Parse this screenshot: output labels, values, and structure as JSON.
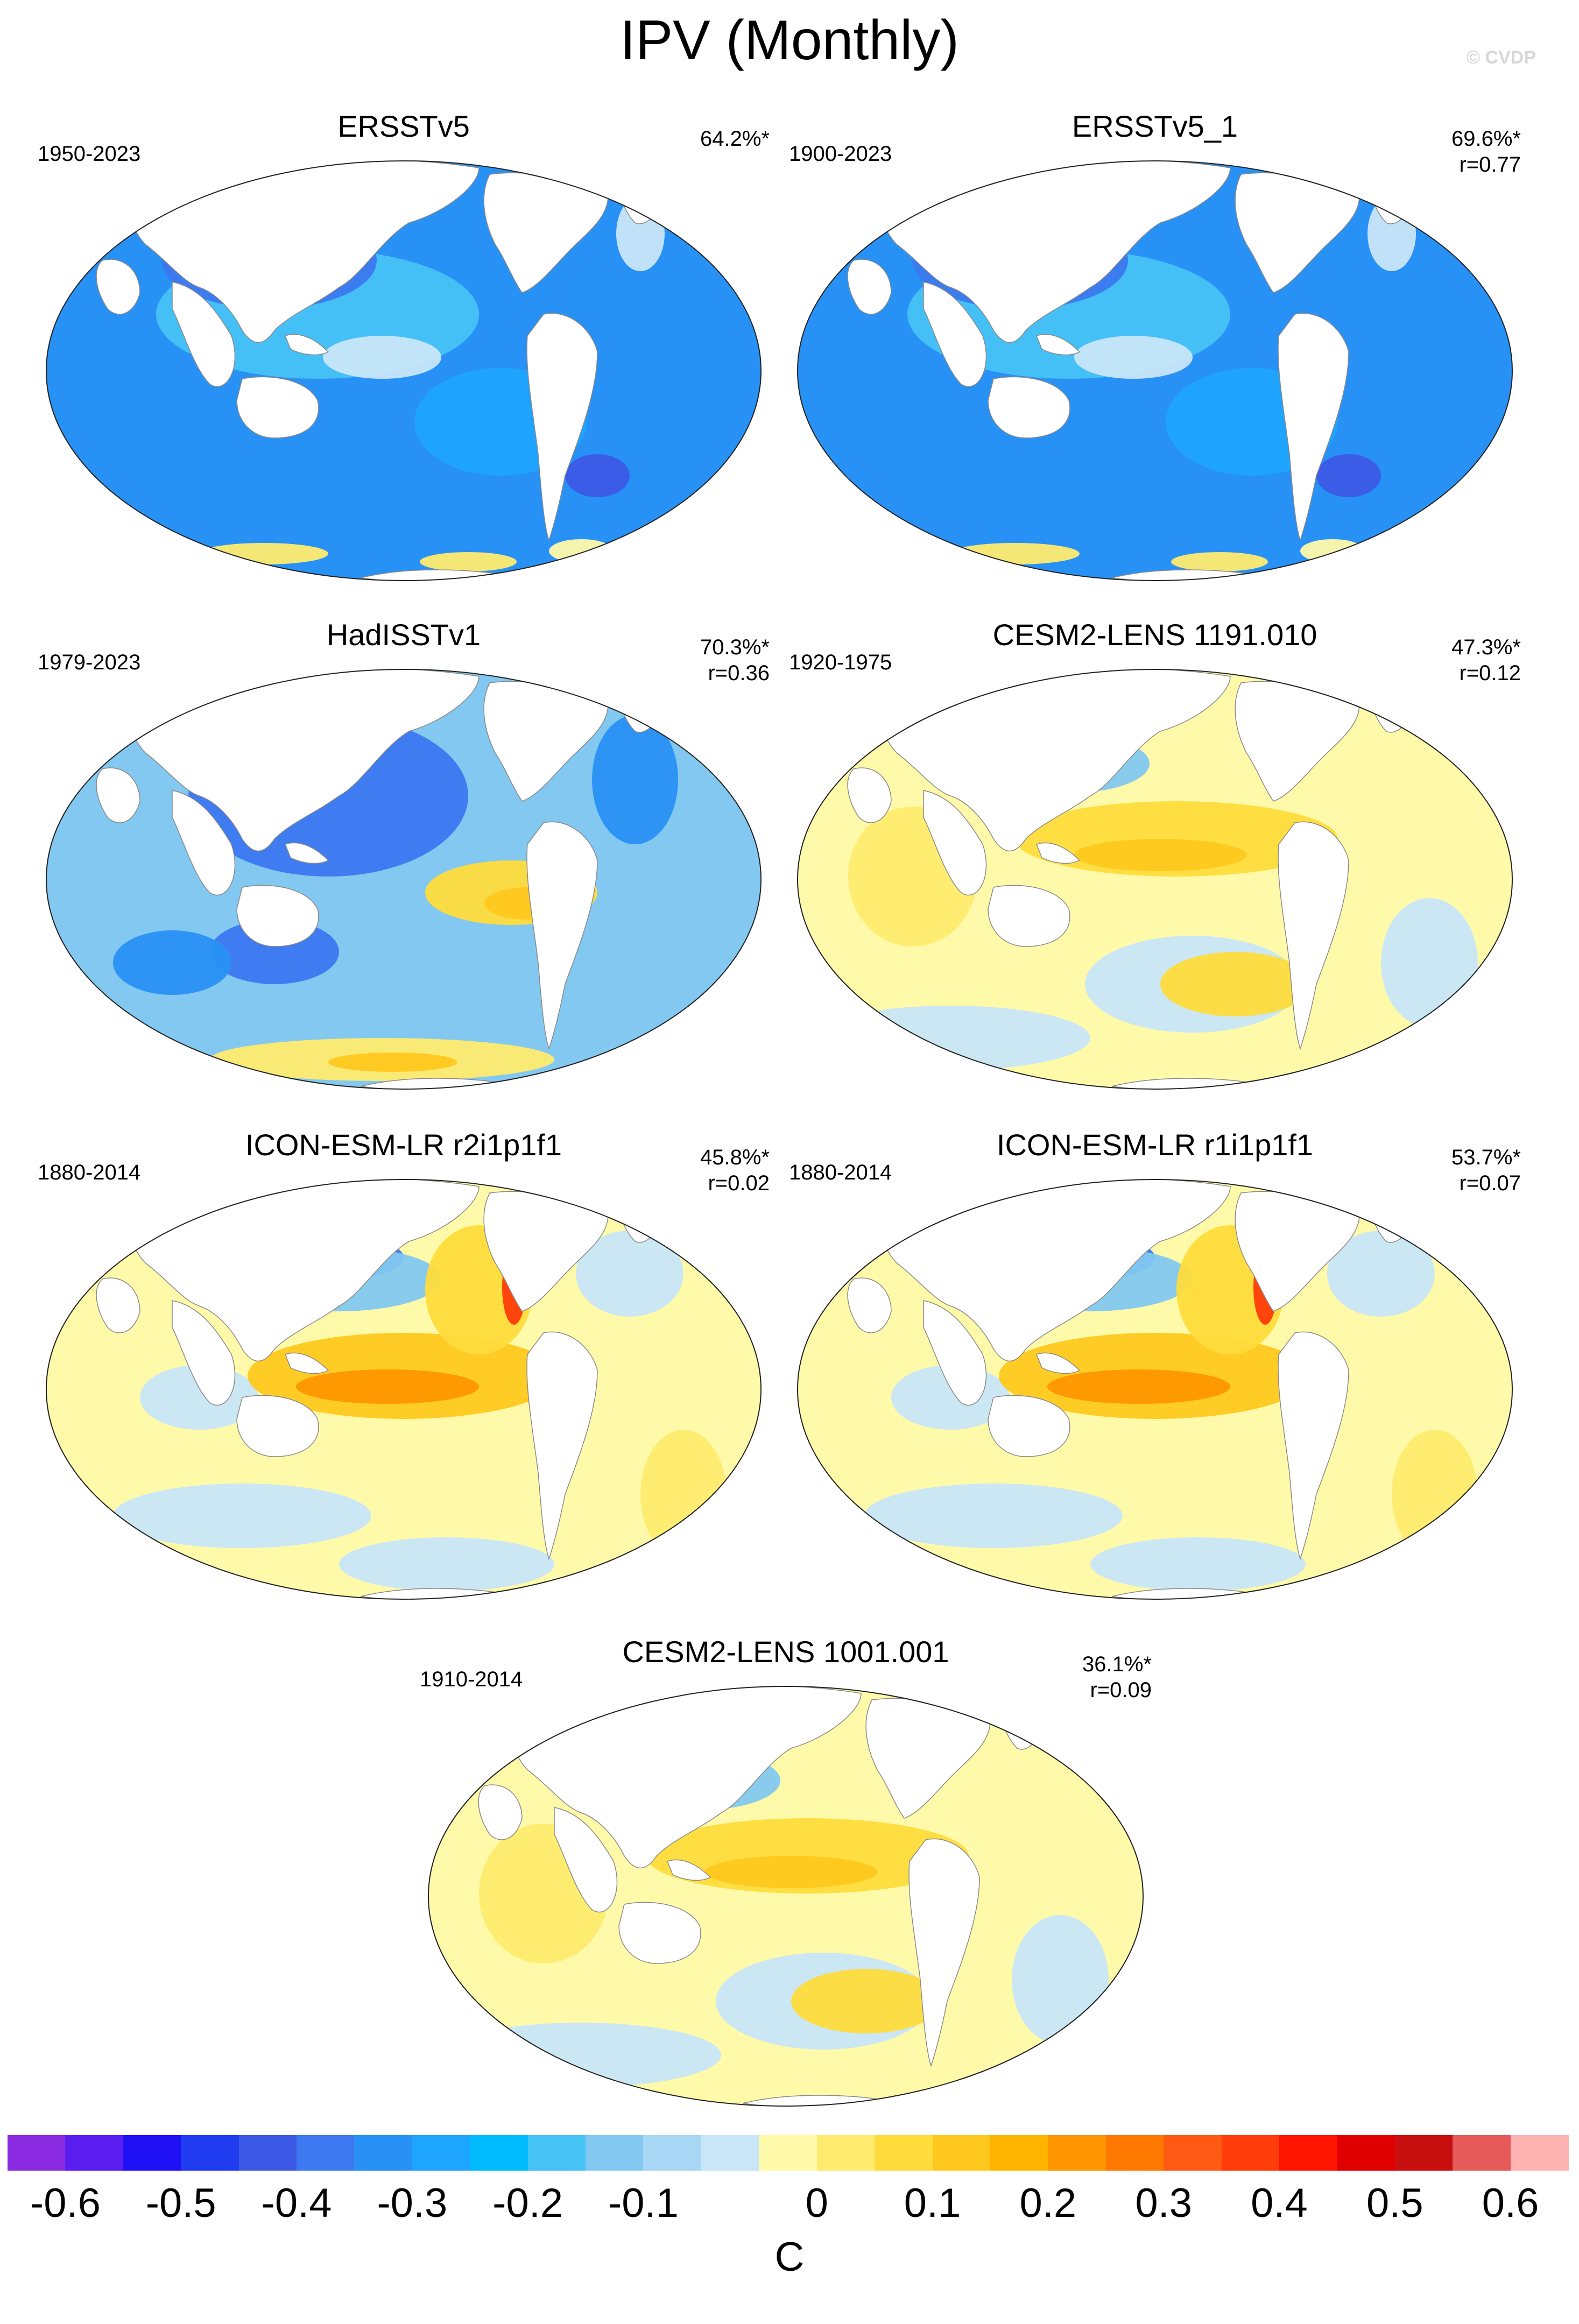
{
  "figure": {
    "title": "IPV (Monthly)",
    "watermark": "© CVDP"
  },
  "panels": [
    {
      "title": "ERSSTv5",
      "period": "1950-2023",
      "stat1": "64.2%*",
      "stat2": "",
      "pattern": "cold"
    },
    {
      "title": "ERSSTv5_1",
      "period": "1900-2023",
      "stat1": "69.6%*",
      "stat2": "r=0.77",
      "pattern": "cold"
    },
    {
      "title": "HadISSTv1",
      "period": "1979-2023",
      "stat1": "70.3%*",
      "stat2": "r=0.36",
      "pattern": "mixed"
    },
    {
      "title": "CESM2-LENS 1191.010",
      "period": "1920-1975",
      "stat1": "47.3%*",
      "stat2": "r=0.12",
      "pattern": "warm"
    },
    {
      "title": "ICON-ESM-LR r2i1p1f1",
      "period": "1880-2014",
      "stat1": "45.8%*",
      "stat2": "r=0.02",
      "pattern": "warm-strong"
    },
    {
      "title": "ICON-ESM-LR r1i1p1f1",
      "period": "1880-2014",
      "stat1": "53.7%*",
      "stat2": "r=0.07",
      "pattern": "warm-strong"
    },
    {
      "title": "CESM2-LENS 1001.001",
      "period": "1910-2014",
      "stat1": "36.1%*",
      "stat2": "r=0.09",
      "pattern": "warm"
    }
  ],
  "colorbar": {
    "units": "C",
    "colors": [
      "#8a2be2",
      "#5a1ef0",
      "#1f10f5",
      "#1f3cf0",
      "#3c5ae6",
      "#3c78f0",
      "#2891f5",
      "#1ea5ff",
      "#00bcff",
      "#46c3f5",
      "#82c8f0",
      "#a8d7f5",
      "#c8e6f8",
      "#fffaaa",
      "#ffec6e",
      "#ffdc3c",
      "#ffc81e",
      "#ffb400",
      "#ff9600",
      "#ff7800",
      "#ff5a14",
      "#ff3c0a",
      "#ff1400",
      "#e10000",
      "#c80f0f",
      "#e65a5a",
      "#ffb4b4"
    ],
    "labels": [
      "-0.6",
      "-0.5",
      "-0.4",
      "-0.3",
      "-0.2",
      "-0.1",
      "0",
      "0.1",
      "0.2",
      "0.3",
      "0.4",
      "0.5",
      "0.6"
    ],
    "label_boundaries": [
      1,
      3,
      5,
      7,
      9,
      11,
      14,
      16,
      18,
      20,
      22,
      24,
      26
    ]
  }
}
